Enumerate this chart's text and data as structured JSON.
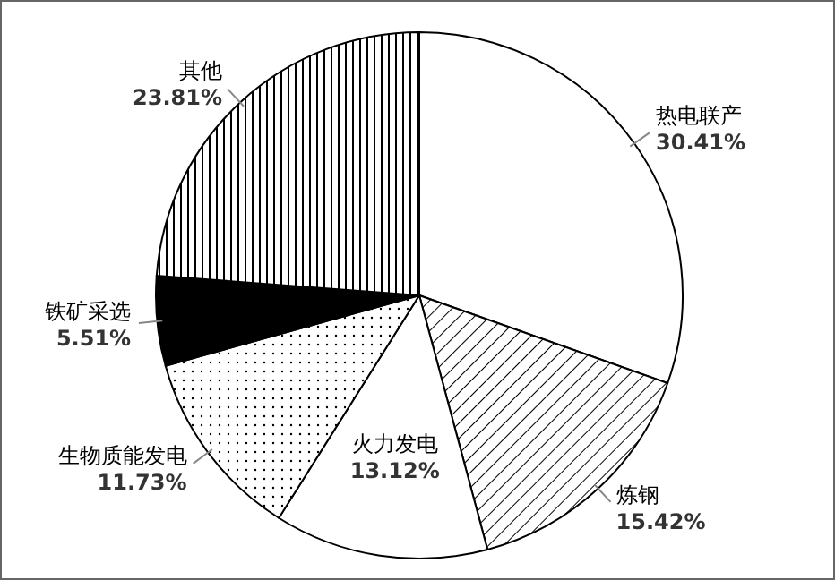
{
  "chart_data": {
    "type": "pie",
    "categories": [
      "热电联产",
      "炼钢",
      "火力发电",
      "生物质能发电",
      "铁矿采选",
      "其他"
    ],
    "values": [
      30.41,
      15.42,
      13.12,
      11.73,
      5.51,
      23.81
    ],
    "value_labels": [
      "30.41%",
      "15.42%",
      "13.12%",
      "11.73%",
      "5.51%",
      "23.81%"
    ],
    "colors": [
      "#ffffff",
      "#ffffff",
      "#ffffff",
      "#ffffff",
      "#000000",
      "#ffffff"
    ]
  }
}
